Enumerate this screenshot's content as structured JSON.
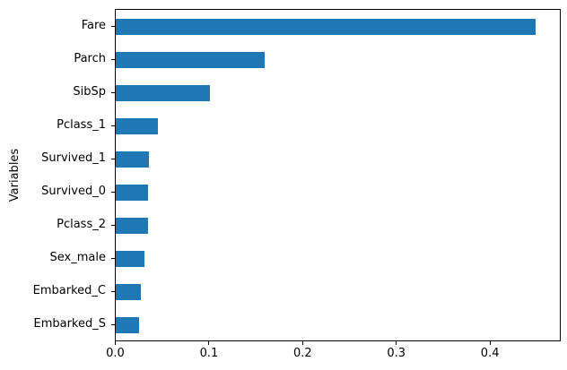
{
  "chart_data": {
    "type": "bar",
    "orientation": "horizontal",
    "title": "",
    "xlabel": "",
    "ylabel": "Variables",
    "categories": [
      "Fare",
      "Parch",
      "SibSp",
      "Pclass_1",
      "Survived_1",
      "Survived_0",
      "Pclass_2",
      "Sex_male",
      "Embarked_C",
      "Embarked_S"
    ],
    "values": [
      0.45,
      0.16,
      0.101,
      0.045,
      0.036,
      0.035,
      0.035,
      0.031,
      0.027,
      0.025
    ],
    "xlim": [
      0,
      0.476
    ],
    "x_ticks": [
      {
        "label": "0.0",
        "value": 0.0
      },
      {
        "label": "0.1",
        "value": 0.1
      },
      {
        "label": "0.2",
        "value": 0.2
      },
      {
        "label": "0.3",
        "value": 0.3
      },
      {
        "label": "0.4",
        "value": 0.4
      }
    ],
    "bar_color": "#1f77b4",
    "axis_color": "#000000",
    "grid": false,
    "legend": false
  }
}
